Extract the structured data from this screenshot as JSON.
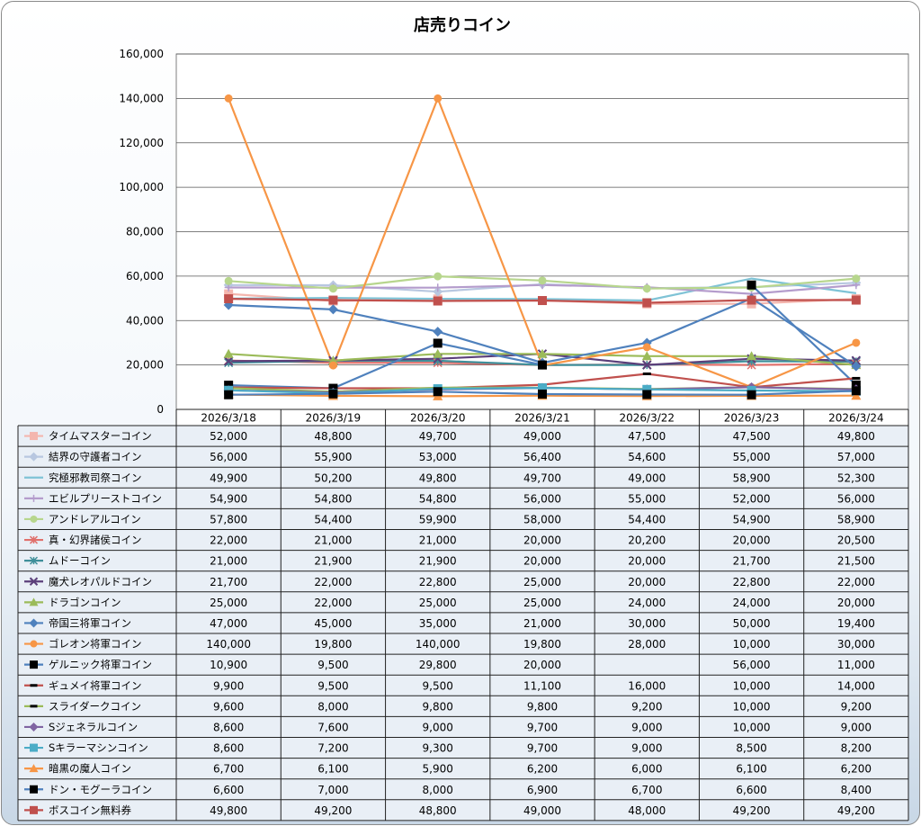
{
  "chart_data": {
    "type": "line",
    "title": "店売りコイン",
    "xlabel": "",
    "ylabel": "",
    "ylim": [
      0,
      160000
    ],
    "yticks": [
      "0",
      "20,000",
      "40,000",
      "60,000",
      "80,000",
      "100,000",
      "120,000",
      "140,000",
      "160,000"
    ],
    "categories": [
      "2026/3/18",
      "2026/3/19",
      "2026/3/20",
      "2026/3/21",
      "2026/3/22",
      "2026/3/23",
      "2026/3/24"
    ],
    "legend": "data-table",
    "grid": true,
    "series": [
      {
        "name": "タイムマスターコイン",
        "color": "#f4b6ae",
        "marker": "square",
        "values": [
          52000,
          48800,
          49700,
          49000,
          47500,
          47500,
          49800
        ],
        "labels": [
          "52,000",
          "48,800",
          "49,700",
          "49,000",
          "47,500",
          "47,500",
          "49,800"
        ]
      },
      {
        "name": "結界の守護者コイン",
        "color": "#b8c7e0",
        "marker": "diamond",
        "values": [
          56000,
          55900,
          53000,
          56400,
          54600,
          55000,
          57000
        ],
        "labels": [
          "56,000",
          "55,900",
          "53,000",
          "56,400",
          "54,600",
          "55,000",
          "57,000"
        ]
      },
      {
        "name": "究極邪教司祭コイン",
        "color": "#7fc3d6",
        "marker": "none",
        "values": [
          49900,
          50200,
          49800,
          49700,
          49000,
          58900,
          52300
        ],
        "labels": [
          "49,900",
          "50,200",
          "49,800",
          "49,700",
          "49,000",
          "58,900",
          "52,300"
        ]
      },
      {
        "name": "エビルプリーストコイン",
        "color": "#b49ccc",
        "marker": "plus",
        "values": [
          54900,
          54800,
          54800,
          56000,
          55000,
          52000,
          56000
        ],
        "labels": [
          "54,900",
          "54,800",
          "54,800",
          "56,000",
          "55,000",
          "52,000",
          "56,000"
        ]
      },
      {
        "name": "アンドレアルコイン",
        "color": "#b7d68d",
        "marker": "circle",
        "values": [
          57800,
          54400,
          59900,
          58000,
          54400,
          54900,
          58900
        ],
        "labels": [
          "57,800",
          "54,400",
          "59,900",
          "58,000",
          "54,400",
          "54,900",
          "58,900"
        ]
      },
      {
        "name": "真・幻界諸侯コイン",
        "color": "#e0706c",
        "marker": "star",
        "values": [
          22000,
          21000,
          21000,
          20000,
          20200,
          20000,
          20500
        ],
        "labels": [
          "22,000",
          "21,000",
          "21,000",
          "20,000",
          "20,200",
          "20,000",
          "20,500"
        ]
      },
      {
        "name": "ムドーコイン",
        "color": "#3f8f9a",
        "marker": "star",
        "values": [
          21000,
          21900,
          21900,
          20000,
          20000,
          21700,
          21500
        ],
        "labels": [
          "21,000",
          "21,900",
          "21,900",
          "20,000",
          "20,000",
          "21,700",
          "21,500"
        ]
      },
      {
        "name": "魔犬レオパルドコイン",
        "color": "#5b3f7a",
        "marker": "x",
        "values": [
          21700,
          22000,
          22800,
          25000,
          20000,
          22800,
          22000
        ],
        "labels": [
          "21,700",
          "22,000",
          "22,800",
          "25,000",
          "20,000",
          "22,800",
          "22,000"
        ]
      },
      {
        "name": "ドラゴンコイン",
        "color": "#9bbb59",
        "marker": "triangle",
        "values": [
          25000,
          22000,
          25000,
          25000,
          24000,
          24000,
          20000
        ],
        "labels": [
          "25,000",
          "22,000",
          "25,000",
          "25,000",
          "24,000",
          "24,000",
          "20,000"
        ]
      },
      {
        "name": "帝国三将軍コイン",
        "color": "#4f81bd",
        "marker": "diamond",
        "values": [
          47000,
          45000,
          35000,
          21000,
          30000,
          50000,
          19400
        ],
        "labels": [
          "47,000",
          "45,000",
          "35,000",
          "21,000",
          "30,000",
          "50,000",
          "19,400"
        ]
      },
      {
        "name": "ゴレオン将軍コイン",
        "color": "#f79646",
        "marker": "circle",
        "values": [
          140000,
          19800,
          140000,
          19800,
          28000,
          10000,
          30000
        ],
        "labels": [
          "140,000",
          "19,800",
          "140,000",
          "19,800",
          "28,000",
          "10,000",
          "30,000"
        ]
      },
      {
        "name": "ゲルニック将軍コイン",
        "color": "#4f81bd",
        "marker": "square-black",
        "values": [
          10900,
          9500,
          29800,
          20000,
          null,
          56000,
          11000
        ],
        "labels": [
          "10,900",
          "9,500",
          "29,800",
          "20,000",
          "",
          "56,000",
          "11,000"
        ]
      },
      {
        "name": "ギュメイ将軍コイン",
        "color": "#c0504d",
        "marker": "dash",
        "values": [
          9900,
          9500,
          9500,
          11100,
          16000,
          10000,
          14000
        ],
        "labels": [
          "9,900",
          "9,500",
          "9,500",
          "11,100",
          "16,000",
          "10,000",
          "14,000"
        ]
      },
      {
        "name": "スライダークコイン",
        "color": "#9bbb59",
        "marker": "dash",
        "values": [
          9600,
          8000,
          9800,
          9800,
          9200,
          10000,
          9200
        ],
        "labels": [
          "9,600",
          "8,000",
          "9,800",
          "9,800",
          "9,200",
          "10,000",
          "9,200"
        ]
      },
      {
        "name": "Sジェネラルコイン",
        "color": "#8064a2",
        "marker": "diamond",
        "values": [
          8600,
          7600,
          9000,
          9700,
          9000,
          10000,
          9000
        ],
        "labels": [
          "8,600",
          "7,600",
          "9,000",
          "9,700",
          "9,000",
          "10,000",
          "9,000"
        ]
      },
      {
        "name": "Sキラーマシンコイン",
        "color": "#4bacc6",
        "marker": "square",
        "values": [
          8600,
          7200,
          9300,
          9700,
          9000,
          8500,
          8200
        ],
        "labels": [
          "8,600",
          "7,200",
          "9,300",
          "9,700",
          "9,000",
          "8,500",
          "8,200"
        ]
      },
      {
        "name": "暗黒の魔人コイン",
        "color": "#f79646",
        "marker": "triangle",
        "values": [
          6700,
          6100,
          5900,
          6200,
          6000,
          6100,
          6200
        ],
        "labels": [
          "6,700",
          "6,100",
          "5,900",
          "6,200",
          "6,000",
          "6,100",
          "6,200"
        ]
      },
      {
        "name": "ドン・モグーラコイン",
        "color": "#4f81bd",
        "marker": "square-black",
        "values": [
          6600,
          7000,
          8000,
          6900,
          6700,
          6600,
          8400
        ],
        "labels": [
          "6,600",
          "7,000",
          "8,000",
          "6,900",
          "6,700",
          "6,600",
          "8,400"
        ]
      },
      {
        "name": "ボスコイン無料券",
        "color": "#c0504d",
        "marker": "square",
        "values": [
          49800,
          49200,
          48800,
          49000,
          48000,
          49200,
          49200
        ],
        "labels": [
          "49,800",
          "49,200",
          "48,800",
          "49,000",
          "48,000",
          "49,200",
          "49,200"
        ]
      }
    ]
  }
}
